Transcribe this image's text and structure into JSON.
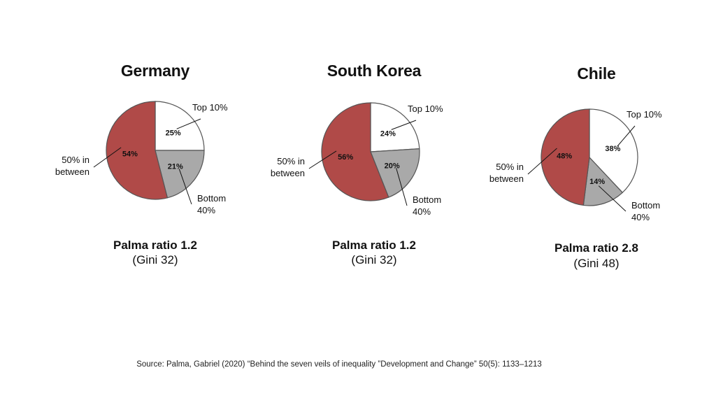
{
  "palette": {
    "top10": "#ffffff",
    "between50": "#b04a48",
    "bottom40": "#a9a9a9",
    "outline": "#555555"
  },
  "chart_data": [
    {
      "type": "pie",
      "title": "Germany",
      "slices": [
        {
          "label": "Top 10%",
          "value": 25,
          "data_label": "25%"
        },
        {
          "label": "Bottom 40%",
          "value": 21,
          "data_label": "21%"
        },
        {
          "label": "50% in between",
          "value": 54,
          "data_label": "54%"
        }
      ],
      "palma": "Palma ratio 1.2",
      "gini": "(Gini 32)"
    },
    {
      "type": "pie",
      "title": "South Korea",
      "slices": [
        {
          "label": "Top 10%",
          "value": 24,
          "data_label": "24%"
        },
        {
          "label": "Bottom 40%",
          "value": 20,
          "data_label": "20%"
        },
        {
          "label": "50% in between",
          "value": 56,
          "data_label": "56%"
        }
      ],
      "palma": "Palma ratio 1.2",
      "gini": "(Gini 32)"
    },
    {
      "type": "pie",
      "title": "Chile",
      "slices": [
        {
          "label": "Top 10%",
          "value": 38,
          "data_label": "38%"
        },
        {
          "label": "Bottom 40%",
          "value": 14,
          "data_label": "14%"
        },
        {
          "label": "50% in between",
          "value": 48,
          "data_label": "48%"
        }
      ],
      "palma": "Palma ratio 2.8",
      "gini": "(Gini 48)"
    }
  ],
  "source": "Source: Palma, Gabriel (2020) “Behind the seven veils of inequality ”Development and Change” 50(5): 1133–1213"
}
